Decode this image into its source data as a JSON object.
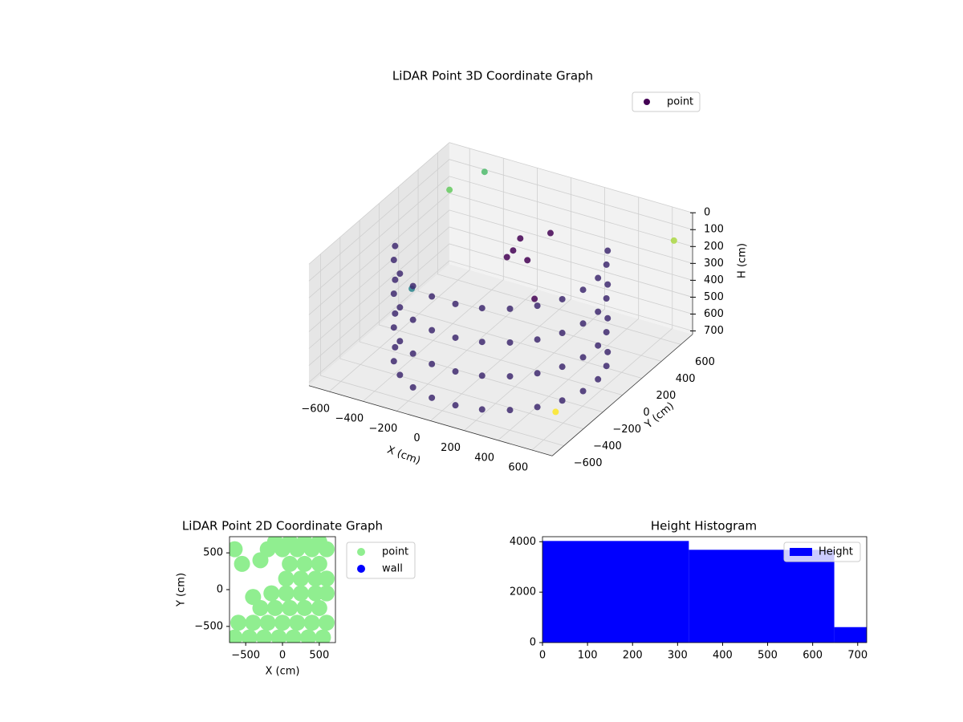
{
  "chart_data": [
    {
      "type": "scatter3d",
      "title": "LiDAR Point 3D Coordinate Graph",
      "xlabel": "X (cm)",
      "ylabel": "Y (cm)",
      "zlabel": "H (cm)",
      "xlim": [
        -720,
        720
      ],
      "ylim": [
        -720,
        720
      ],
      "zlim": [
        0,
        720
      ],
      "zinvert": true,
      "grid": true,
      "legend": "upper right",
      "colormap": "viridis",
      "xticks": [
        {
          "value": -600,
          "label": "−600"
        },
        {
          "value": -400,
          "label": "−400"
        },
        {
          "value": -200,
          "label": "−200"
        },
        0,
        200,
        400,
        600
      ],
      "yticks": [
        {
          "value": -600,
          "label": "−600"
        },
        {
          "value": -400,
          "label": "−400"
        },
        {
          "value": -200,
          "label": "−200"
        },
        0,
        200,
        400,
        600
      ],
      "zticks": [
        0,
        100,
        200,
        300,
        400,
        500,
        600,
        700
      ],
      "series": [
        {
          "name": "point",
          "color": "#440154",
          "x": [
            -517,
            -517,
            -517,
            -517,
            -451,
            -451,
            -451,
            -451,
            -354,
            -354,
            -354,
            -354,
            -232,
            -232,
            -232,
            -232,
            -95,
            -95,
            -95,
            -95,
            48,
            48,
            48,
            48,
            188,
            188,
            188,
            188,
            315,
            315,
            315,
            315,
            421,
            421,
            421,
            421,
            498,
            498,
            498,
            498,
            542,
            542,
            542,
            542,
            548,
            548,
            548,
            548,
            517,
            517,
            517,
            517,
            451,
            451,
            451,
            451,
            -650,
            -700,
            700,
            650,
            -500,
            100,
            0,
            -100,
            200,
            150,
            -50
          ],
          "y": [
            -188,
            -188,
            -188,
            -188,
            -315,
            -315,
            -315,
            -315,
            -421,
            -421,
            -421,
            -421,
            -498,
            -498,
            -498,
            -498,
            -542,
            -542,
            -542,
            -542,
            -548,
            -548,
            -548,
            -548,
            -517,
            -517,
            -517,
            -517,
            -451,
            -451,
            -451,
            -451,
            -354,
            -354,
            -354,
            -354,
            -232,
            -232,
            -232,
            -232,
            -95,
            -95,
            -95,
            -95,
            48,
            48,
            48,
            48,
            188,
            188,
            188,
            188,
            315,
            315,
            315,
            315,
            600,
            300,
            -650,
            650,
            700,
            100,
            200,
            300,
            0,
            250,
            150
          ],
          "h": [
            100,
            300,
            500,
            700,
            100,
            300,
            500,
            700,
            100,
            300,
            500,
            700,
            100,
            300,
            500,
            700,
            100,
            300,
            500,
            700,
            100,
            300,
            500,
            700,
            100,
            300,
            500,
            700,
            100,
            300,
            500,
            700,
            100,
            300,
            500,
            700,
            100,
            300,
            500,
            700,
            100,
            300,
            500,
            700,
            100,
            300,
            500,
            700,
            100,
            300,
            500,
            700,
            100,
            300,
            500,
            700,
            200,
            650,
            500,
            150,
            100,
            150,
            100,
            250,
            300,
            50,
            200
          ]
        }
      ]
    },
    {
      "type": "scatter",
      "title": "LiDAR Point 2D Coordinate Graph",
      "xlabel": "X (cm)",
      "ylabel": "Y (cm)",
      "xlim": [
        -720,
        720
      ],
      "ylim": [
        -720,
        720
      ],
      "legend": "outside right",
      "xticks": [
        {
          "value": -500,
          "label": "−500"
        },
        0,
        500
      ],
      "yticks": [
        {
          "value": -500,
          "label": "−500"
        },
        0,
        500
      ],
      "series": [
        {
          "name": "point",
          "color": "#90ee90",
          "x": [
            -650,
            -450,
            -250,
            -50,
            150,
            350,
            550,
            -600,
            -400,
            -200,
            0,
            200,
            400,
            600,
            -300,
            -100,
            100,
            300,
            500,
            -150,
            50,
            250,
            450,
            600,
            50,
            250,
            450,
            600,
            100,
            300,
            500,
            -650,
            -200,
            0,
            200,
            400,
            600,
            -100,
            100,
            300,
            500,
            -400,
            -300,
            -550
          ],
          "y": [
            -650,
            -650,
            -650,
            -650,
            -650,
            -650,
            -650,
            -450,
            -450,
            -450,
            -450,
            -450,
            -450,
            -450,
            -250,
            -250,
            -250,
            -250,
            -250,
            -50,
            -50,
            -50,
            -50,
            -50,
            150,
            150,
            150,
            150,
            350,
            350,
            350,
            550,
            550,
            550,
            550,
            550,
            550,
            650,
            650,
            650,
            650,
            -100,
            400,
            350
          ]
        },
        {
          "name": "wall",
          "color": "#0000ff",
          "x": [],
          "y": []
        }
      ]
    },
    {
      "type": "histogram",
      "title": "Height Histogram",
      "name": "Height",
      "color": "#0000ff",
      "legend": "upper right",
      "bins": [
        0,
        325,
        648,
        720
      ],
      "counts": [
        4030,
        3680,
        613
      ],
      "xlim": [
        0,
        720
      ],
      "ylim": [
        0,
        4200
      ],
      "xticks": [
        0,
        100,
        200,
        300,
        400,
        500,
        600,
        700
      ],
      "yticks": [
        0,
        2000,
        4000
      ]
    }
  ]
}
